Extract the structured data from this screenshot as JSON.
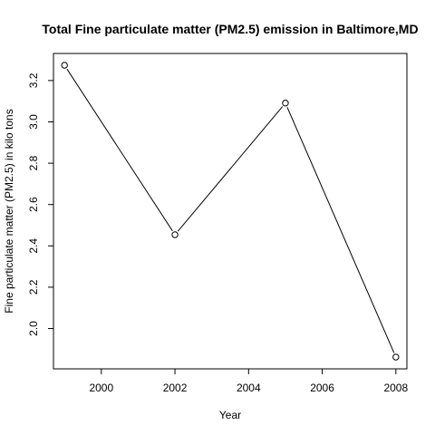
{
  "chart_data": {
    "type": "line",
    "title": "Total Fine particulate matter (PM2.5) emission in Baltimore,MD",
    "xlabel": "Year",
    "ylabel": "Fine particulate matter (PM2.5) in kilo tons",
    "x": [
      1999,
      2002,
      2005,
      2008
    ],
    "series": [
      {
        "values": [
          3.274,
          2.454,
          3.091,
          1.862
        ]
      }
    ],
    "xlim": [
      1998.7,
      2008.3
    ],
    "ylim": [
      1.805,
      3.331
    ],
    "x_ticks": [
      "2000",
      "2002",
      "2004",
      "2006",
      "2008"
    ],
    "y_ticks": [
      "2.0",
      "2.2",
      "2.4",
      "2.6",
      "2.8",
      "3.0",
      "3.2"
    ],
    "markers": "open circles",
    "grid": false,
    "line_color": "#000000"
  }
}
